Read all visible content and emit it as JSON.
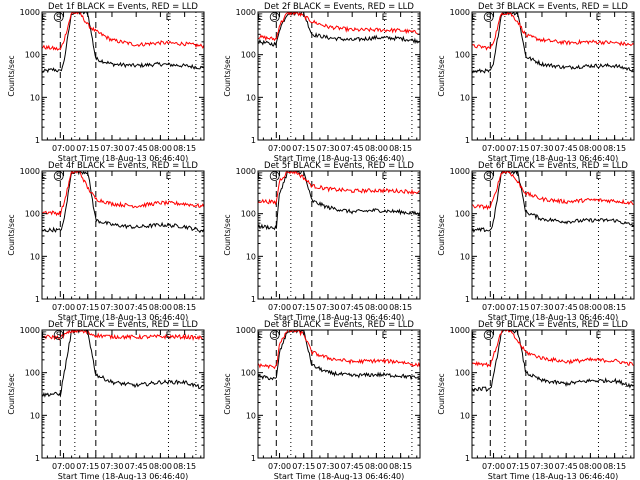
{
  "colors": {
    "background": "#ffffff",
    "events": "#000000",
    "lld": "#ff0000",
    "axis": "#000000"
  },
  "chart_data": [
    {
      "type": "line",
      "title": "Det 1f BLACK = Events, RED = LLD",
      "xlabel": "Start Time (18-Aug-13 06:46:40)",
      "ylabel": "Counts/sec",
      "yscale": "log",
      "ylim": [
        1,
        1000
      ],
      "x": [
        "06:47",
        "06:54",
        "06:58",
        "07:00",
        "07:05",
        "07:10",
        "07:15",
        "07:20",
        "07:30",
        "07:45",
        "08:00",
        "08:15",
        "08:25"
      ],
      "xticks": [
        "07:00",
        "07:15",
        "07:30",
        "07:45",
        "08:00",
        "08:15"
      ],
      "markers": [
        {
          "label": "E",
          "time": "06:48"
        },
        {
          "label": "S",
          "time": "06:57"
        },
        {
          "label": "E",
          "time": "08:05"
        }
      ],
      "dashed_lines": [
        "06:58",
        "07:20"
      ],
      "dotted_lines": [
        "07:07",
        "08:05",
        "08:22"
      ],
      "series": [
        {
          "name": "Events",
          "values": [
            40,
            45,
            40,
            60,
            950,
            950,
            950,
            80,
            60,
            55,
            60,
            55,
            50
          ]
        },
        {
          "name": "LLD",
          "values": [
            150,
            140,
            130,
            200,
            950,
            950,
            500,
            350,
            220,
            170,
            190,
            180,
            160
          ]
        }
      ]
    },
    {
      "type": "line",
      "title": "Det 2f BLACK = Events, RED = LLD",
      "xlabel": "Start Time (18-Aug-13 06:46:40)",
      "ylabel": "Counts/sec",
      "yscale": "log",
      "ylim": [
        1,
        1000
      ],
      "x": [
        "06:47",
        "06:54",
        "06:58",
        "07:00",
        "07:05",
        "07:10",
        "07:15",
        "07:20",
        "07:30",
        "07:45",
        "08:00",
        "08:15",
        "08:25"
      ],
      "xticks": [
        "07:00",
        "07:15",
        "07:30",
        "07:45",
        "08:00",
        "08:15"
      ],
      "markers": [
        {
          "label": "E",
          "time": "06:48"
        },
        {
          "label": "S",
          "time": "06:57"
        },
        {
          "label": "E",
          "time": "08:05"
        }
      ],
      "dashed_lines": [
        "06:58",
        "07:20"
      ],
      "dotted_lines": [
        "07:07",
        "08:05",
        "08:22"
      ],
      "series": [
        {
          "name": "Events",
          "values": [
            200,
            180,
            175,
            400,
            950,
            950,
            950,
            300,
            250,
            220,
            250,
            240,
            210
          ]
        },
        {
          "name": "LLD",
          "values": [
            260,
            240,
            230,
            500,
            950,
            950,
            800,
            600,
            450,
            380,
            380,
            370,
            330
          ]
        }
      ]
    },
    {
      "type": "line",
      "title": "Det 3f BLACK = Events, RED = LLD",
      "xlabel": "Start Time (18-Aug-13 06:46:40)",
      "ylabel": "Counts/sec",
      "yscale": "log",
      "ylim": [
        1,
        1000
      ],
      "x": [
        "06:47",
        "06:54",
        "06:58",
        "07:00",
        "07:05",
        "07:10",
        "07:15",
        "07:20",
        "07:30",
        "07:45",
        "08:00",
        "08:15",
        "08:25"
      ],
      "xticks": [
        "07:00",
        "07:15",
        "07:30",
        "07:45",
        "08:00",
        "08:15"
      ],
      "markers": [
        {
          "label": "E",
          "time": "06:48"
        },
        {
          "label": "S",
          "time": "06:57"
        },
        {
          "label": "E",
          "time": "08:05"
        }
      ],
      "dashed_lines": [
        "06:58",
        "07:20"
      ],
      "dotted_lines": [
        "07:07",
        "08:05",
        "08:22"
      ],
      "series": [
        {
          "name": "Events",
          "values": [
            40,
            42,
            40,
            60,
            950,
            950,
            950,
            90,
            60,
            50,
            55,
            55,
            45
          ]
        },
        {
          "name": "LLD",
          "values": [
            160,
            150,
            140,
            200,
            950,
            950,
            600,
            280,
            220,
            190,
            200,
            190,
            170
          ]
        }
      ]
    },
    {
      "type": "line",
      "title": "Det 4f BLACK = Events, RED = LLD",
      "xlabel": "Start Time (18-Aug-13 06:46:40)",
      "ylabel": "Counts/sec",
      "yscale": "log",
      "ylim": [
        1,
        1000
      ],
      "x": [
        "06:47",
        "06:54",
        "06:58",
        "07:00",
        "07:05",
        "07:10",
        "07:15",
        "07:20",
        "07:30",
        "07:45",
        "08:00",
        "08:15",
        "08:25"
      ],
      "xticks": [
        "07:00",
        "07:15",
        "07:30",
        "07:45",
        "08:00",
        "08:15"
      ],
      "markers": [
        {
          "label": "E",
          "time": "06:48"
        },
        {
          "label": "S",
          "time": "06:57"
        },
        {
          "label": "E",
          "time": "08:05"
        }
      ],
      "dashed_lines": [
        "06:58",
        "07:20"
      ],
      "dotted_lines": [
        "07:07",
        "08:05",
        "08:22"
      ],
      "series": [
        {
          "name": "Events",
          "values": [
            40,
            42,
            40,
            60,
            950,
            950,
            950,
            70,
            55,
            48,
            55,
            50,
            40
          ]
        },
        {
          "name": "LLD",
          "values": [
            110,
            105,
            100,
            160,
            950,
            950,
            400,
            220,
            170,
            150,
            180,
            170,
            150
          ]
        }
      ]
    },
    {
      "type": "line",
      "title": "Det 5f BLACK = Events, RED = LLD",
      "xlabel": "Start Time (18-Aug-13 06:46:40)",
      "ylabel": "Counts/sec",
      "yscale": "log",
      "ylim": [
        1,
        1000
      ],
      "x": [
        "06:47",
        "06:54",
        "06:58",
        "07:00",
        "07:05",
        "07:10",
        "07:15",
        "07:20",
        "07:30",
        "07:45",
        "08:00",
        "08:15",
        "08:25"
      ],
      "xticks": [
        "07:00",
        "07:15",
        "07:30",
        "07:45",
        "08:00",
        "08:15"
      ],
      "markers": [
        {
          "label": "E",
          "time": "06:48"
        },
        {
          "label": "S",
          "time": "06:57"
        },
        {
          "label": "E",
          "time": "08:05"
        }
      ],
      "dashed_lines": [
        "06:58",
        "07:20"
      ],
      "dotted_lines": [
        "07:07",
        "08:05",
        "08:22"
      ],
      "series": [
        {
          "name": "Events",
          "values": [
            50,
            48,
            45,
            300,
            950,
            950,
            950,
            200,
            140,
            110,
            120,
            110,
            100
          ]
        },
        {
          "name": "LLD",
          "values": [
            200,
            190,
            180,
            600,
            950,
            950,
            700,
            450,
            380,
            340,
            350,
            340,
            320
          ]
        }
      ]
    },
    {
      "type": "line",
      "title": "Det 6f BLACK = Events, RED = LLD",
      "xlabel": "Start Time (18-Aug-13 06:46:40)",
      "ylabel": "Counts/sec",
      "yscale": "log",
      "ylim": [
        1,
        1000
      ],
      "x": [
        "06:47",
        "06:54",
        "06:58",
        "07:00",
        "07:05",
        "07:10",
        "07:15",
        "07:20",
        "07:30",
        "07:45",
        "08:00",
        "08:15",
        "08:25"
      ],
      "xticks": [
        "07:00",
        "07:15",
        "07:30",
        "07:45",
        "08:00",
        "08:15"
      ],
      "markers": [
        {
          "label": "E",
          "time": "06:48"
        },
        {
          "label": "S",
          "time": "06:57"
        },
        {
          "label": "E",
          "time": "08:05"
        }
      ],
      "dashed_lines": [
        "06:58",
        "07:20"
      ],
      "dotted_lines": [
        "07:07",
        "08:05",
        "08:22"
      ],
      "series": [
        {
          "name": "Events",
          "values": [
            40,
            42,
            40,
            65,
            950,
            950,
            950,
            110,
            75,
            65,
            70,
            70,
            55
          ]
        },
        {
          "name": "LLD",
          "values": [
            150,
            145,
            140,
            220,
            950,
            950,
            550,
            300,
            220,
            190,
            210,
            200,
            180
          ]
        }
      ]
    },
    {
      "type": "line",
      "title": "Det 7f BLACK = Events, RED = LLD",
      "xlabel": "Start Time (18-Aug-13 06:46:40)",
      "ylabel": "Counts/sec",
      "yscale": "log",
      "ylim": [
        1,
        1000
      ],
      "x": [
        "06:47",
        "06:54",
        "06:58",
        "07:00",
        "07:05",
        "07:10",
        "07:15",
        "07:20",
        "07:30",
        "07:45",
        "08:00",
        "08:15",
        "08:25"
      ],
      "xticks": [
        "07:00",
        "07:15",
        "07:30",
        "07:45",
        "08:00",
        "08:15"
      ],
      "markers": [
        {
          "label": "E",
          "time": "06:48"
        },
        {
          "label": "S",
          "time": "06:57"
        },
        {
          "label": "E",
          "time": "08:05"
        }
      ],
      "dashed_lines": [
        "06:58",
        "07:20"
      ],
      "dotted_lines": [
        "07:07",
        "08:05",
        "08:22"
      ],
      "series": [
        {
          "name": "Events",
          "values": [
            30,
            32,
            30,
            80,
            950,
            950,
            950,
            90,
            60,
            50,
            60,
            60,
            45
          ]
        },
        {
          "name": "LLD",
          "values": [
            700,
            680,
            650,
            750,
            950,
            950,
            850,
            750,
            700,
            680,
            700,
            690,
            650
          ]
        }
      ]
    },
    {
      "type": "line",
      "title": "Det 8f BLACK = Events, RED = LLD",
      "xlabel": "Start Time (18-Aug-13 06:46:40)",
      "ylabel": "Counts/sec",
      "yscale": "log",
      "ylim": [
        1,
        1000
      ],
      "x": [
        "06:47",
        "06:54",
        "06:58",
        "07:00",
        "07:05",
        "07:10",
        "07:15",
        "07:20",
        "07:30",
        "07:45",
        "08:00",
        "08:15",
        "08:25"
      ],
      "xticks": [
        "07:00",
        "07:15",
        "07:30",
        "07:45",
        "08:00",
        "08:15"
      ],
      "markers": [
        {
          "label": "E",
          "time": "06:48"
        },
        {
          "label": "S",
          "time": "06:57"
        },
        {
          "label": "E",
          "time": "08:05"
        }
      ],
      "dashed_lines": [
        "06:58",
        "07:20"
      ],
      "dotted_lines": [
        "07:07",
        "08:05",
        "08:22"
      ],
      "series": [
        {
          "name": "Events",
          "values": [
            80,
            75,
            70,
            300,
            950,
            950,
            950,
            150,
            100,
            85,
            90,
            85,
            75
          ]
        },
        {
          "name": "LLD",
          "values": [
            150,
            140,
            130,
            500,
            950,
            950,
            800,
            300,
            220,
            180,
            190,
            180,
            150
          ]
        }
      ]
    },
    {
      "type": "line",
      "title": "Det 9f BLACK = Events, RED = LLD",
      "xlabel": "Start Time (18-Aug-13 06:46:40)",
      "ylabel": "Counts/sec",
      "yscale": "log",
      "ylim": [
        1,
        1000
      ],
      "x": [
        "06:47",
        "06:54",
        "06:58",
        "07:00",
        "07:05",
        "07:10",
        "07:15",
        "07:20",
        "07:30",
        "07:45",
        "08:00",
        "08:15",
        "08:25"
      ],
      "xticks": [
        "07:00",
        "07:15",
        "07:30",
        "07:45",
        "08:00",
        "08:15"
      ],
      "markers": [
        {
          "label": "E",
          "time": "06:48"
        },
        {
          "label": "S",
          "time": "06:57"
        },
        {
          "label": "E",
          "time": "08:05"
        }
      ],
      "dashed_lines": [
        "06:58",
        "07:20"
      ],
      "dotted_lines": [
        "07:07",
        "08:05",
        "08:22"
      ],
      "series": [
        {
          "name": "Events",
          "values": [
            40,
            42,
            40,
            80,
            950,
            950,
            950,
            100,
            65,
            55,
            65,
            65,
            50
          ]
        },
        {
          "name": "LLD",
          "values": [
            170,
            160,
            150,
            250,
            950,
            950,
            550,
            300,
            220,
            180,
            200,
            190,
            160
          ]
        }
      ]
    }
  ]
}
